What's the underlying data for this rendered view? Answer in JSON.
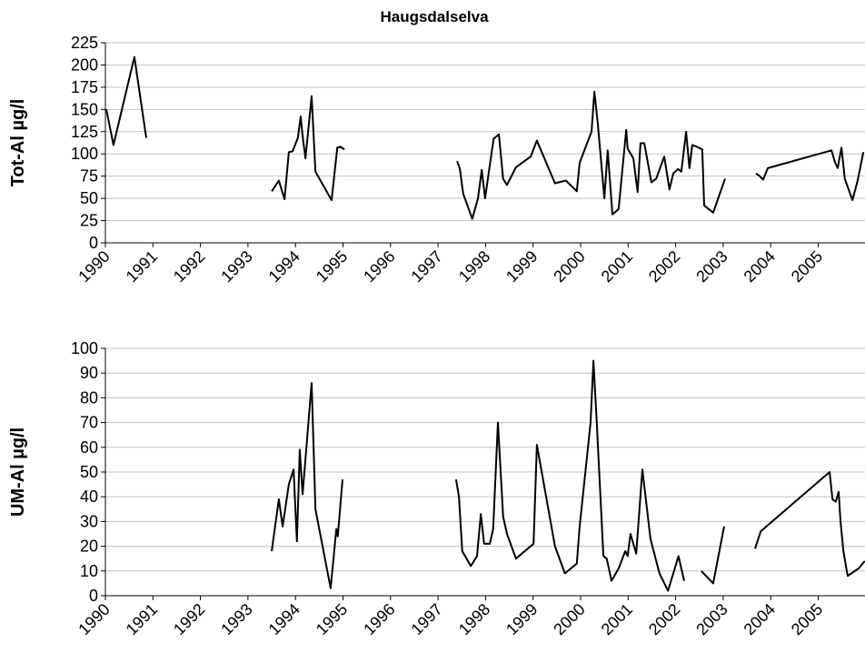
{
  "chart_data": [
    {
      "type": "line",
      "title": "Haugsdalselva",
      "y_label": "Tot-Al µg/l",
      "grid": true,
      "xlim": [
        1990,
        2006
      ],
      "xticks": [
        1990,
        1991,
        1992,
        1993,
        1994,
        1995,
        1996,
        1997,
        1998,
        1999,
        2000,
        2001,
        2002,
        2003,
        2004,
        2005
      ],
      "ylim": [
        0,
        225
      ],
      "yticks": [
        0,
        25,
        50,
        75,
        100,
        125,
        150,
        175,
        200,
        225
      ],
      "series": [
        {
          "color": "#000000",
          "x": [
            1990.02,
            1990.17,
            1990.61,
            1990.86,
            null,
            1993.5,
            1993.65,
            1993.77,
            1993.86,
            1993.94,
            1994.05,
            1994.11,
            1994.15,
            1994.21,
            1994.34,
            1994.42,
            1994.76,
            1994.88,
            1994.95,
            1995.03,
            null,
            1997.4,
            1997.46,
            1997.53,
            1997.72,
            1997.84,
            1997.92,
            1997.99,
            1998.07,
            1998.17,
            1998.28,
            1998.37,
            1998.45,
            1998.64,
            1998.95,
            1999.08,
            1999.46,
            1999.69,
            1999.92,
            1999.98,
            2000.23,
            2000.29,
            2000.36,
            2000.5,
            2000.57,
            2000.67,
            2000.8,
            2000.96,
            2000.99,
            2001.11,
            2001.2,
            2001.26,
            2001.34,
            2001.49,
            2001.59,
            2001.76,
            2001.87,
            2001.95,
            2002.05,
            2002.12,
            2002.22,
            2002.29,
            2002.35,
            2002.45,
            2002.56,
            2002.6,
            2002.79,
            2003.04,
            null,
            2003.69,
            2003.77,
            2003.84,
            2003.94,
            2005.28,
            2005.35,
            2005.41,
            2005.49,
            2005.56,
            2005.72,
            2005.83,
            2005.95
          ],
          "values": [
            150,
            110,
            209,
            118,
            null,
            58,
            70,
            49,
            102,
            103,
            118,
            142,
            120,
            95,
            165,
            80,
            48,
            107,
            108,
            105,
            null,
            92,
            83,
            55,
            27,
            50,
            82,
            50,
            80,
            117,
            122,
            72,
            65,
            85,
            97,
            115,
            67,
            70,
            58,
            90,
            125,
            170,
            135,
            50,
            104,
            32,
            38,
            127,
            106,
            95,
            57,
            112,
            112,
            68,
            72,
            97,
            60,
            78,
            83,
            80,
            125,
            84,
            110,
            108,
            105,
            42,
            34,
            72,
            null,
            78,
            75,
            71,
            84,
            104,
            91,
            84,
            107,
            72,
            48,
            70,
            102
          ]
        }
      ]
    },
    {
      "type": "line",
      "y_label": "UM-Al µg/l",
      "grid": true,
      "xlim": [
        1990,
        2006
      ],
      "xticks": [
        1990,
        1991,
        1992,
        1993,
        1994,
        1995,
        1996,
        1997,
        1998,
        1999,
        2000,
        2001,
        2002,
        2003,
        2004,
        2005
      ],
      "ylim": [
        0,
        100
      ],
      "yticks": [
        0,
        10,
        20,
        30,
        40,
        50,
        60,
        70,
        80,
        90,
        100
      ],
      "series": [
        {
          "color": "#000000",
          "x": [
            1993.5,
            1993.65,
            1993.73,
            1993.86,
            1993.96,
            1994.03,
            1994.09,
            1994.15,
            1994.34,
            1994.42,
            1994.74,
            1994.86,
            1994.89,
            1994.99,
            null,
            1997.38,
            1997.44,
            1997.51,
            1997.69,
            1997.82,
            1997.9,
            1997.97,
            1998.09,
            1998.16,
            1998.26,
            1998.37,
            1998.45,
            1998.64,
            1999.01,
            1999.08,
            1999.46,
            1999.67,
            1999.92,
            1999.98,
            2000.21,
            2000.27,
            2000.34,
            2000.48,
            2000.55,
            2000.65,
            2000.8,
            2000.94,
            2000.99,
            2001.05,
            2001.17,
            2001.3,
            2001.47,
            2001.66,
            2001.84,
            2002.06,
            2002.18,
            null,
            2002.54,
            2002.79,
            2003.02,
            null,
            2003.67,
            2003.79,
            2005.24,
            2005.3,
            2005.37,
            2005.43,
            2005.47,
            2005.53,
            2005.62,
            2005.85,
            2005.98
          ],
          "values": [
            18,
            39,
            28,
            45,
            51,
            22,
            59,
            41,
            86,
            35,
            3,
            27,
            24,
            47,
            null,
            47,
            40,
            18,
            12,
            16,
            33,
            21,
            21,
            27,
            70,
            32,
            25,
            15,
            21,
            61,
            20,
            9,
            13,
            28,
            70,
            95,
            70,
            16,
            15,
            6,
            11,
            18,
            16,
            25,
            17,
            51,
            23,
            9,
            2,
            16,
            6,
            null,
            10,
            5,
            28,
            null,
            19,
            26,
            50,
            39,
            38,
            42,
            30,
            18,
            8,
            11,
            14
          ]
        }
      ]
    }
  ]
}
